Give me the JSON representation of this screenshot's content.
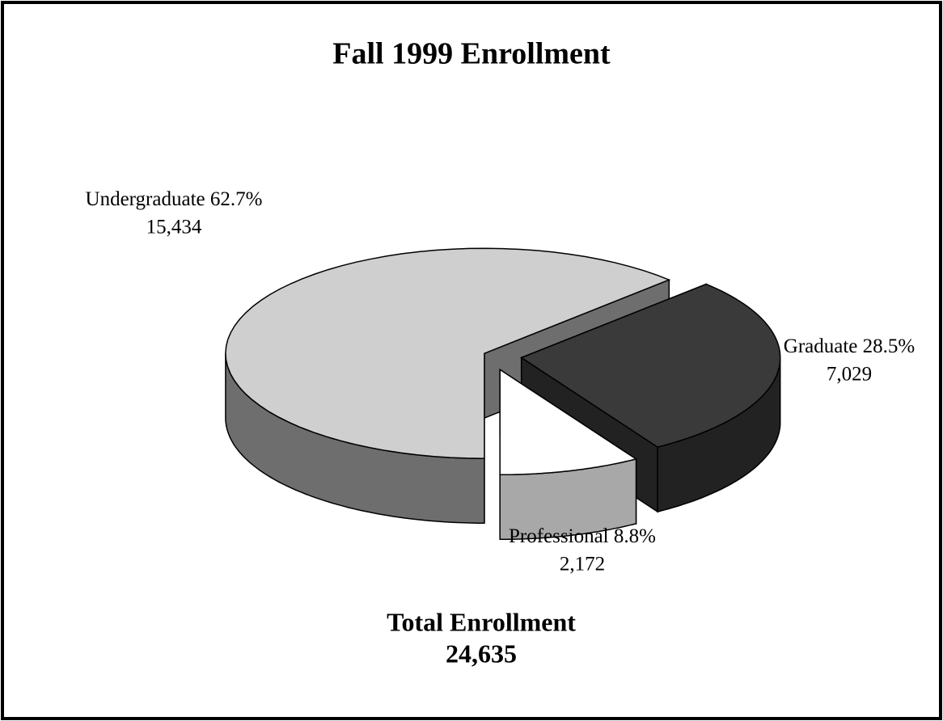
{
  "chart_data": {
    "type": "pie",
    "title": "Fall 1999 Enrollment",
    "categories": [
      "Undergraduate",
      "Graduate",
      "Professional"
    ],
    "values": [
      15434,
      7029,
      2172
    ],
    "value_labels": [
      "15,434",
      "7,029",
      "2,172"
    ],
    "percent_labels": [
      "62.7%",
      "28.5%",
      "8.8%"
    ],
    "colors": [
      "#cfcfcf",
      "#3a3a3a",
      "#ffffff"
    ],
    "side_colors": [
      "#6e6e6e",
      "#222222",
      "#a8a8a8"
    ],
    "total_label": "Total Enrollment",
    "total": "24,635"
  }
}
